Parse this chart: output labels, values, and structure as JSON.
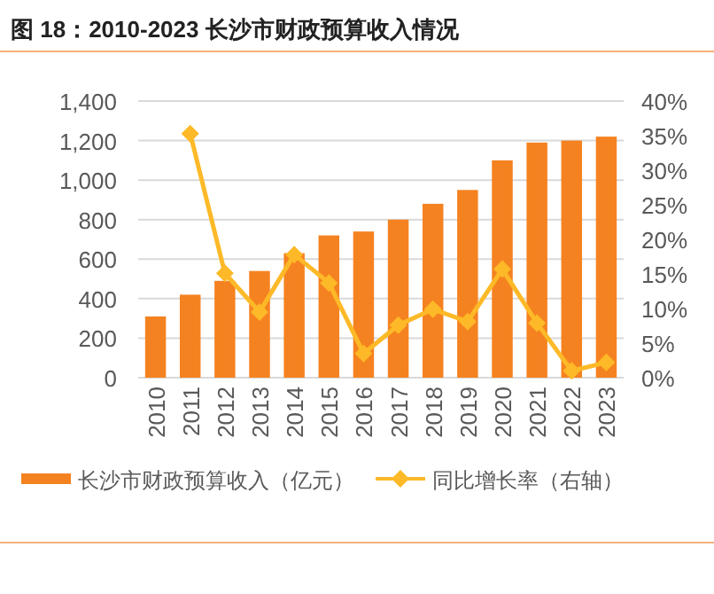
{
  "chart_data": {
    "type": "bar",
    "title": "图 18：2010-2023 长沙市财政预算收入情况",
    "categories": [
      "2010",
      "2011",
      "2012",
      "2013",
      "2014",
      "2015",
      "2016",
      "2017",
      "2018",
      "2019",
      "2020",
      "2021",
      "2022",
      "2023"
    ],
    "series": [
      {
        "name": "长沙市财政预算收入（亿元）",
        "color": "#f58220",
        "values": [
          310,
          420,
          490,
          540,
          630,
          720,
          740,
          800,
          880,
          950,
          1100,
          1190,
          1200,
          1220
        ]
      },
      {
        "name": "同比增长率（右轴）",
        "type": "line",
        "axis": "y2",
        "color": "#fdb927",
        "marker": "diamond",
        "values": [
          null,
          35.3,
          15.1,
          9.5,
          17.8,
          13.7,
          3.5,
          7.6,
          9.9,
          8.1,
          15.7,
          7.9,
          1.0,
          2.2
        ]
      }
    ],
    "ylim": [
      0,
      1400
    ],
    "yticks": [
      0,
      {
        "value": 200,
        "label": "200"
      },
      {
        "value": 400,
        "label": "400"
      },
      {
        "value": 600,
        "label": "600"
      },
      {
        "value": 800,
        "label": "800"
      },
      {
        "value": 1000,
        "label": "1,000"
      },
      {
        "value": 1200,
        "label": "1,200"
      },
      {
        "value": 1400,
        "label": "1,400"
      }
    ],
    "y2lim": [
      0,
      40
    ],
    "y2ticks": [
      {
        "value": 0,
        "label": "0%"
      },
      {
        "value": 5,
        "label": "5%"
      },
      {
        "value": 10,
        "label": "10%"
      },
      {
        "value": 15,
        "label": "15%"
      },
      {
        "value": 20,
        "label": "20%"
      },
      {
        "value": 25,
        "label": "25%"
      },
      {
        "value": 30,
        "label": "30%"
      },
      {
        "value": 35,
        "label": "35%"
      },
      {
        "value": 40,
        "label": "40%"
      }
    ],
    "grid": "y",
    "legend": "bottom"
  }
}
